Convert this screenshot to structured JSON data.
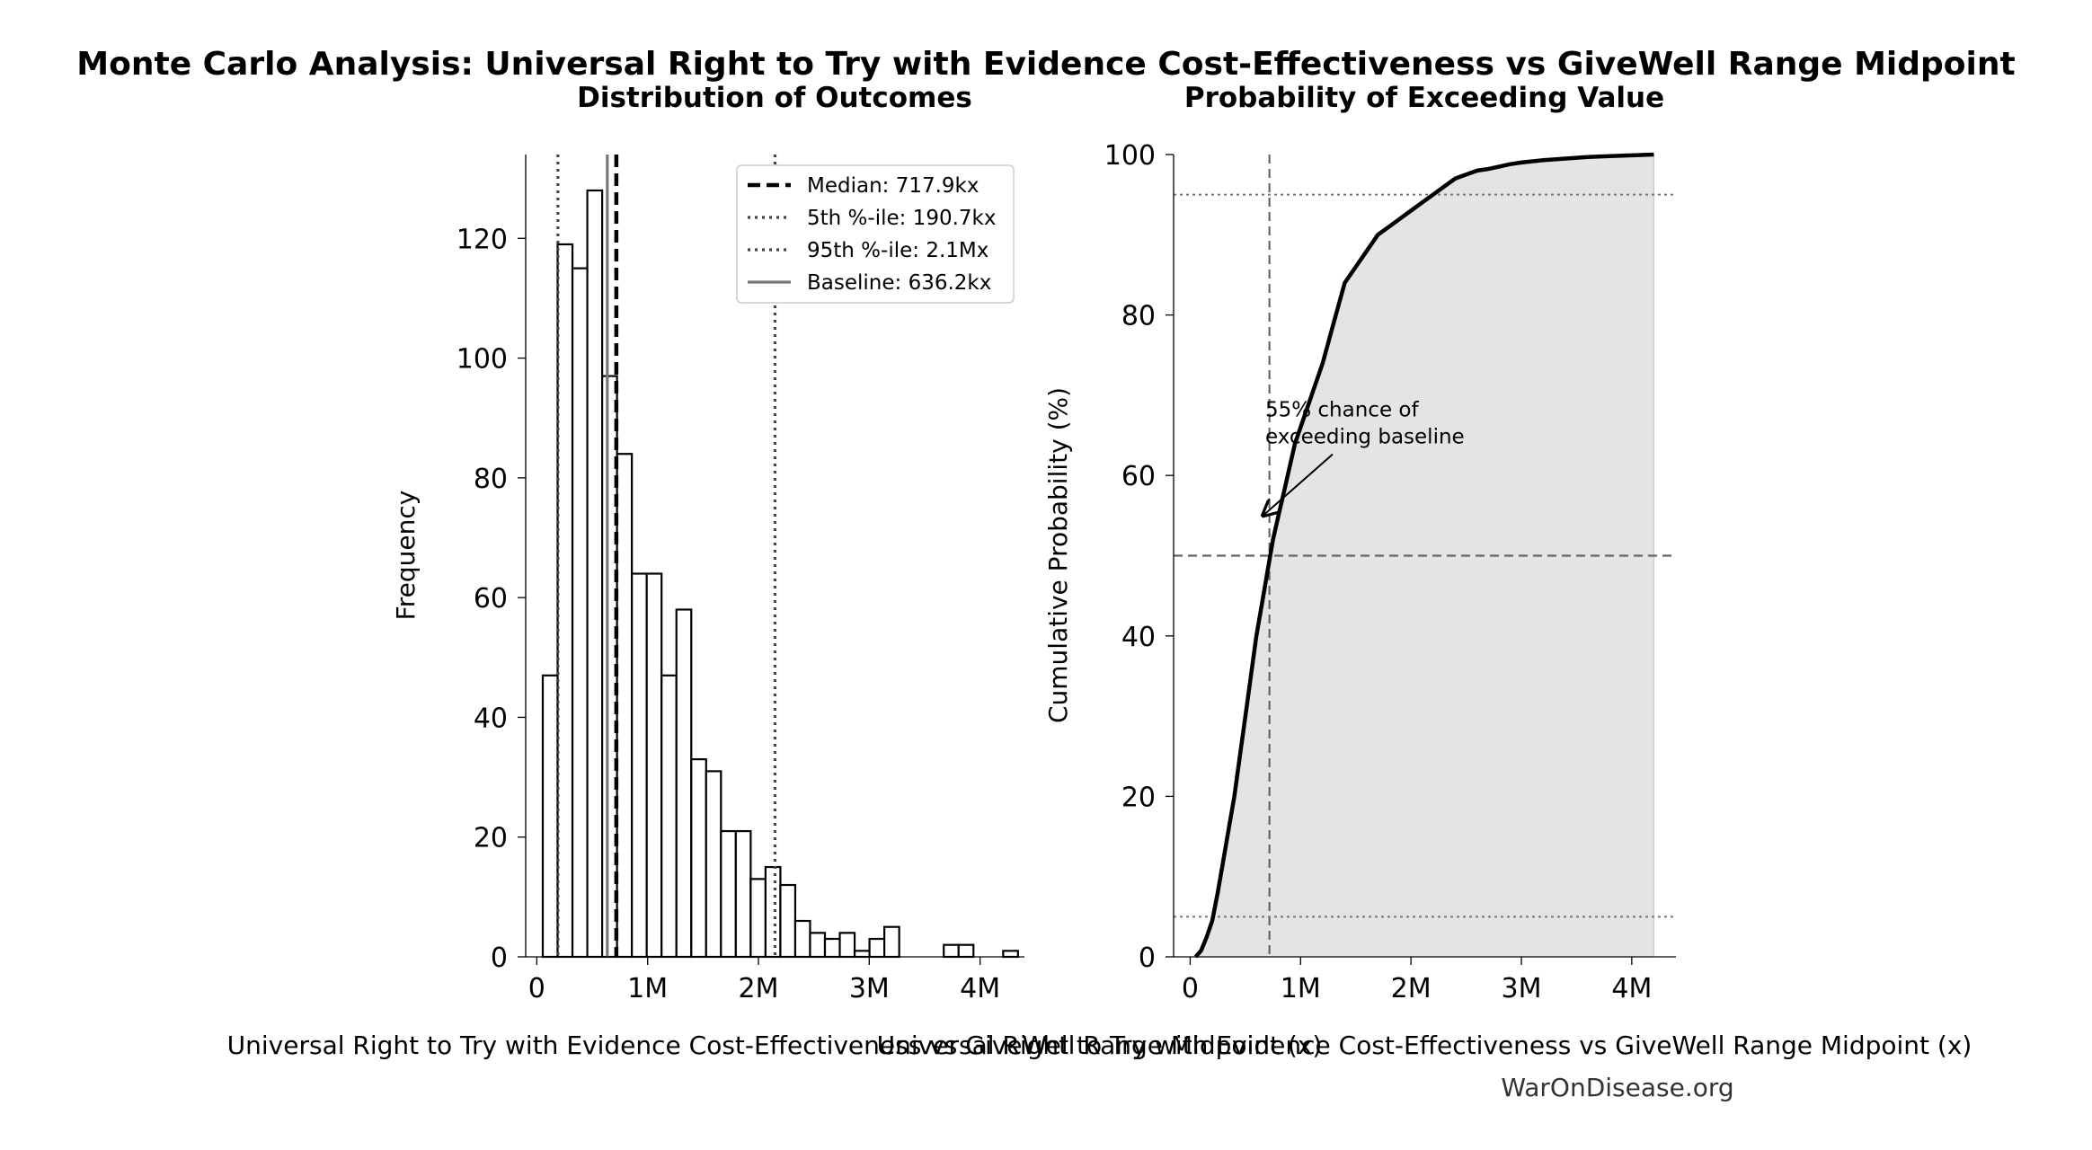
{
  "figure": {
    "title": "Monte Carlo Analysis: Universal Right to Try with Evidence Cost-Effectiveness vs GiveWell Range Midpoint",
    "watermark": "WarOnDisease.org"
  },
  "chart_data": [
    {
      "type": "histogram",
      "title": "Distribution of Outcomes",
      "xlabel": "Universal Right to Try with Evidence Cost-Effectiveness vs GiveWell Range Midpoint (x)",
      "ylabel": "Frequency",
      "xlim": [
        -100000,
        4400000
      ],
      "ylim": [
        0,
        134
      ],
      "xticks": [
        0,
        1000000,
        2000000,
        3000000,
        4000000
      ],
      "xtick_labels": [
        "0",
        "1M",
        "2M",
        "3M",
        "4M"
      ],
      "yticks": [
        0,
        20,
        40,
        60,
        80,
        100,
        120
      ],
      "bin_width": 134000,
      "bin_start": 54000,
      "counts": [
        47,
        119,
        115,
        128,
        97,
        84,
        64,
        64,
        47,
        58,
        33,
        31,
        21,
        21,
        13,
        15,
        12,
        6,
        4,
        3,
        4,
        1,
        3,
        5,
        0,
        0,
        0,
        2,
        2,
        0,
        0,
        1
      ],
      "reference_lines": [
        {
          "label": "Median: 717.9kx",
          "value": 717900,
          "style": "dashed",
          "color": "#000000"
        },
        {
          "label": "5th %-ile: 190.7kx",
          "value": 190700,
          "style": "dotted",
          "color": "#444444"
        },
        {
          "label": "95th %-ile: 2.1Mx",
          "value": 2150000,
          "style": "dotted",
          "color": "#444444"
        },
        {
          "label": "Baseline: 636.2kx",
          "value": 636200,
          "style": "solid",
          "color": "#777777"
        }
      ],
      "legend_position": "upper right",
      "grid": false
    },
    {
      "type": "line",
      "title": "Probability of Exceeding Value",
      "xlabel": "Universal Right to Try with Evidence Cost-Effectiveness vs GiveWell Range Midpoint (x)",
      "ylabel": "Cumulative Probability (%)",
      "xlim": [
        -150000,
        4400000
      ],
      "ylim": [
        0,
        100
      ],
      "xticks": [
        0,
        1000000,
        2000000,
        3000000,
        4000000
      ],
      "xtick_labels": [
        "0",
        "1M",
        "2M",
        "3M",
        "4M"
      ],
      "yticks": [
        0,
        20,
        40,
        60,
        80,
        100
      ],
      "x": [
        50000,
        100000,
        150000,
        200000,
        250000,
        300000,
        350000,
        400000,
        450000,
        500000,
        550000,
        600000,
        650000,
        700000,
        750000,
        800000,
        850000,
        900000,
        950000,
        1000000,
        1100000,
        1200000,
        1300000,
        1400000,
        1500000,
        1600000,
        1700000,
        1800000,
        1900000,
        2000000,
        2100000,
        2200000,
        2300000,
        2400000,
        2500000,
        2600000,
        2700000,
        2800000,
        2900000,
        3000000,
        3200000,
        3400000,
        3600000,
        3800000,
        4000000,
        4200000
      ],
      "y": [
        0,
        0.8,
        2.5,
        4.5,
        8,
        12,
        16,
        20,
        25,
        30,
        35,
        40,
        44,
        48,
        52,
        55,
        58,
        61,
        64,
        66,
        70,
        74,
        79,
        84,
        86,
        88,
        90,
        91,
        92,
        93,
        94,
        95,
        96,
        97,
        97.5,
        98,
        98.2,
        98.5,
        98.8,
        99,
        99.3,
        99.5,
        99.7,
        99.8,
        99.9,
        100
      ],
      "fill_under": true,
      "reference_lines": [
        {
          "orientation": "vertical",
          "value": 717900,
          "style": "dashed",
          "color": "#666666"
        },
        {
          "orientation": "horizontal",
          "value": 50,
          "style": "dashed",
          "color": "#666666"
        },
        {
          "orientation": "horizontal",
          "value": 95,
          "style": "dotted",
          "color": "#777777"
        },
        {
          "orientation": "horizontal",
          "value": 5,
          "style": "dotted",
          "color": "#777777"
        }
      ],
      "annotation": {
        "lines": [
          "55% chance of",
          "exceeding baseline"
        ],
        "text_x": 680000,
        "text_y": 66,
        "arrow_x": 660000,
        "arrow_y": 55
      },
      "grid": false
    }
  ]
}
